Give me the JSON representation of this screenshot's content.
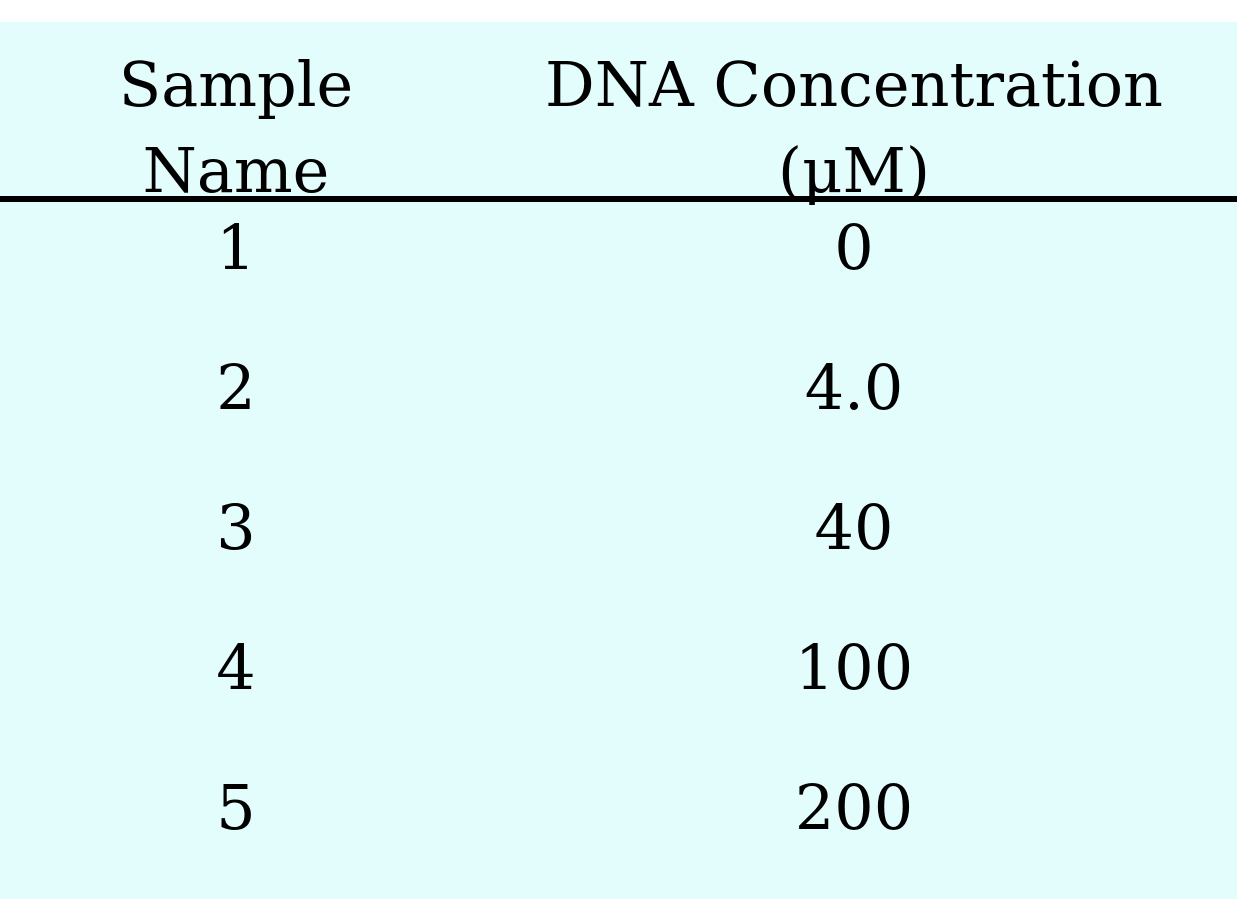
{
  "table": {
    "headers": {
      "sample_name": [
        "Sample",
        "Name"
      ],
      "dna_concentration": [
        "DNA Concentration",
        "(μM)"
      ]
    },
    "rows": [
      {
        "sample": "1",
        "concentration": "0"
      },
      {
        "sample": "2",
        "concentration": "4.0"
      },
      {
        "sample": "3",
        "concentration": "40"
      },
      {
        "sample": "4",
        "concentration": "100"
      },
      {
        "sample": "5",
        "concentration": "200"
      }
    ]
  },
  "colors": {
    "background": "#e3fdfd",
    "text": "#000000",
    "rule": "#000000"
  }
}
